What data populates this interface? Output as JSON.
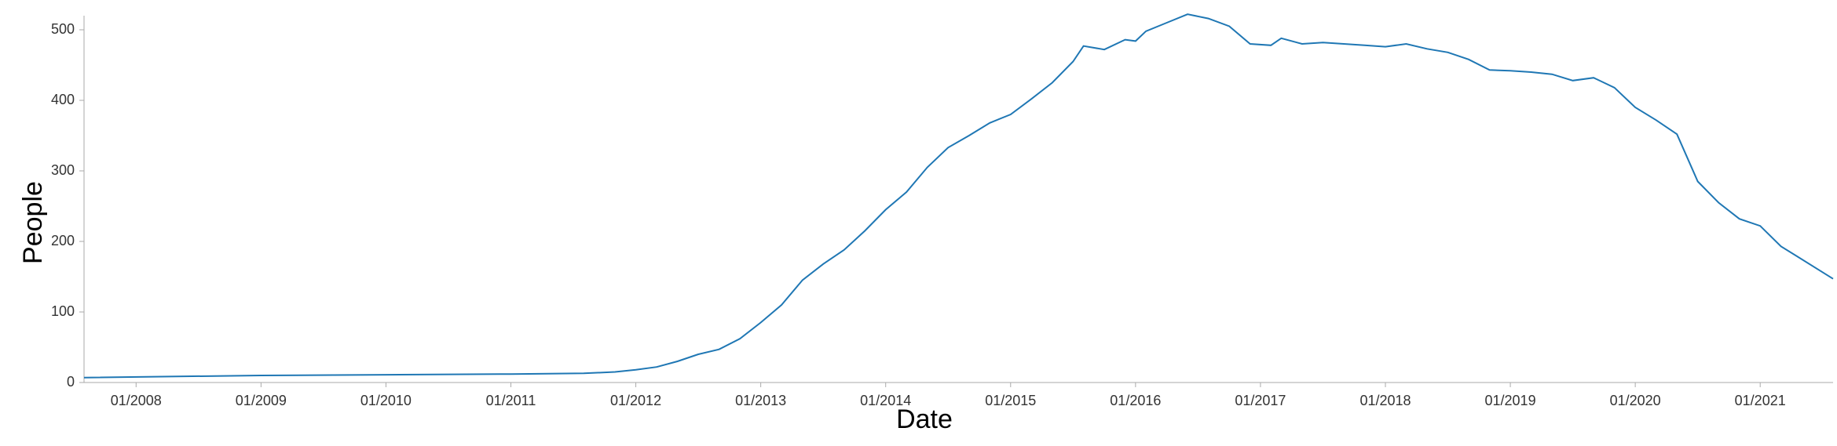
{
  "chart_data": {
    "type": "line",
    "x_label": "Date",
    "y_label": "People",
    "x": [
      "2007-08",
      "2009-01",
      "2010-01",
      "2011-01",
      "2011-08",
      "2011-11",
      "2012-01",
      "2012-03",
      "2012-05",
      "2012-07",
      "2012-09",
      "2012-11",
      "2013-01",
      "2013-03",
      "2013-05",
      "2013-07",
      "2013-09",
      "2013-11",
      "2014-01",
      "2014-03",
      "2014-05",
      "2014-07",
      "2014-09",
      "2014-11",
      "2015-01",
      "2015-03",
      "2015-05",
      "2015-07",
      "2015-08",
      "2015-10",
      "2015-12",
      "2016-01",
      "2016-02",
      "2016-04",
      "2016-06",
      "2016-08",
      "2016-10",
      "2016-12",
      "2017-02",
      "2017-03",
      "2017-05",
      "2017-07",
      "2017-09",
      "2017-11",
      "2018-01",
      "2018-03",
      "2018-05",
      "2018-07",
      "2018-09",
      "2018-11",
      "2019-01",
      "2019-03",
      "2019-05",
      "2019-07",
      "2019-09",
      "2019-11",
      "2020-01",
      "2020-03",
      "2020-05",
      "2020-07",
      "2020-09",
      "2020-11",
      "2021-01",
      "2021-03",
      "2021-08"
    ],
    "series": [
      {
        "name": "People",
        "color": "#1f77b4",
        "values": [
          7,
          10,
          11,
          12,
          13,
          15,
          18,
          22,
          30,
          40,
          47,
          62,
          85,
          110,
          145,
          168,
          188,
          215,
          245,
          270,
          305,
          333,
          350,
          368,
          380,
          402,
          425,
          455,
          477,
          472,
          486,
          484,
          498,
          510,
          522,
          516,
          505,
          480,
          478,
          488,
          480,
          482,
          480,
          478,
          476,
          480,
          473,
          468,
          458,
          443,
          442,
          440,
          437,
          428,
          432,
          418,
          390,
          372,
          352,
          285,
          255,
          232,
          222,
          193,
          147
        ]
      }
    ],
    "xlim": [
      "2007-08",
      "2021-08"
    ],
    "xticks": [
      {
        "value": "2008-01",
        "label": "01/2008"
      },
      {
        "value": "2009-01",
        "label": "01/2009"
      },
      {
        "value": "2010-01",
        "label": "01/2010"
      },
      {
        "value": "2011-01",
        "label": "01/2011"
      },
      {
        "value": "2012-01",
        "label": "01/2012"
      },
      {
        "value": "2013-01",
        "label": "01/2013"
      },
      {
        "value": "2014-01",
        "label": "01/2014"
      },
      {
        "value": "2015-01",
        "label": "01/2015"
      },
      {
        "value": "2016-01",
        "label": "01/2016"
      },
      {
        "value": "2017-01",
        "label": "01/2017"
      },
      {
        "value": "2018-01",
        "label": "01/2018"
      },
      {
        "value": "2019-01",
        "label": "01/2019"
      },
      {
        "value": "2020-01",
        "label": "01/2020"
      },
      {
        "value": "2021-01",
        "label": "01/2021"
      }
    ],
    "ylim": [
      0,
      520
    ],
    "yticks": [
      0,
      100,
      200,
      300,
      400,
      500
    ],
    "grid": false
  }
}
